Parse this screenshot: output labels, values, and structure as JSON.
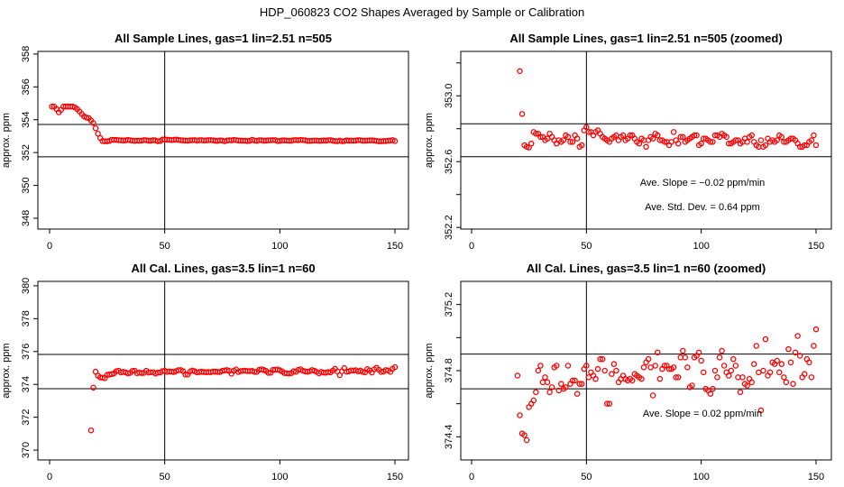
{
  "title": "HDP_060823  CO2 Shapes Averaged by Sample or Calibration",
  "chart_data": [
    {
      "type": "scatter",
      "title": "All Sample Lines, gas=1 lin=2.51 n=505",
      "xlabel": "",
      "ylabel": "approx. ppm",
      "series_ref": "sample",
      "xlim": [
        0,
        150
      ],
      "ylim": [
        347.34,
        358.16
      ],
      "xticks": [
        "0",
        "50",
        "100",
        "150"
      ],
      "yticks": [
        "348",
        "350",
        "352",
        "354",
        "356",
        "358"
      ],
      "hlines": [
        353.71,
        351.74
      ],
      "vlines": [
        50
      ],
      "annotations": []
    },
    {
      "type": "scatter",
      "title": "All Sample Lines, gas=1 lin=2.51 n=505 (zoomed)",
      "xlabel": "",
      "ylabel": "approx. ppm",
      "series_ref": "sample",
      "xlim": [
        0,
        150
      ],
      "ylim": [
        352.19,
        353.27
      ],
      "xticks": [
        "0",
        "50",
        "100",
        "150"
      ],
      "yticks": [
        "352.2",
        "352.4",
        "352.6",
        "352.8",
        "353.0",
        "353.2"
      ],
      "ytick_labels_shown": [
        "352.2",
        "",
        "352.6",
        "",
        "353.0",
        ""
      ],
      "hlines": [
        352.83,
        352.63
      ],
      "vlines": [
        50
      ],
      "annotations": [
        "Ave. Slope =  −0.02  ppm/min",
        "Ave. Std. Dev. =  0.64  ppm"
      ]
    },
    {
      "type": "scatter",
      "title": "All Cal. Lines, gas=3.5 lin=1 n=60",
      "xlabel": "",
      "ylabel": "approx. ppm",
      "series_ref": "cal",
      "xlim": [
        0,
        150
      ],
      "ylim": [
        369.4,
        380.27
      ],
      "xticks": [
        "0",
        "50",
        "100",
        "150"
      ],
      "yticks": [
        "370",
        "372",
        "374",
        "376",
        "378",
        "380"
      ],
      "hlines": [
        375.82,
        373.74
      ],
      "vlines": [
        50
      ],
      "annotations": []
    },
    {
      "type": "scatter",
      "title": "All Cal. Lines, gas=3.5 lin=1 n=60 (zoomed)",
      "xlabel": "",
      "ylabel": "approx. ppm",
      "series_ref": "cal",
      "xlim": [
        0,
        150
      ],
      "ylim": [
        374.26,
        375.34
      ],
      "xticks": [
        "0",
        "50",
        "100",
        "150"
      ],
      "yticks": [
        "374.4",
        "374.6",
        "374.8",
        "375.0",
        "375.2"
      ],
      "ytick_labels_shown": [
        "374.4",
        "",
        "374.8",
        "",
        "375.2"
      ],
      "hlines": [
        374.9,
        374.69
      ],
      "vlines": [
        50
      ],
      "annotations": [
        "Ave. Slope =  0.02  ppm/min"
      ]
    }
  ],
  "series": {
    "sample": {
      "color": "#ff0000",
      "x_start": 1,
      "values": [
        354.8,
        354.8,
        354.65,
        354.45,
        354.6,
        354.8,
        354.8,
        354.8,
        354.8,
        354.8,
        354.75,
        354.65,
        354.5,
        354.35,
        354.2,
        354.13,
        354.1,
        353.95,
        353.8,
        353.48,
        353.15,
        352.89,
        352.7,
        352.69,
        352.686,
        352.71,
        352.78,
        352.77,
        352.77,
        352.75,
        352.75,
        352.73,
        352.74,
        352.77,
        352.75,
        352.73,
        352.71,
        352.73,
        352.72,
        352.73,
        352.76,
        352.75,
        352.72,
        352.72,
        352.76,
        352.74,
        352.69,
        352.7,
        352.79,
        352.81,
        352.78,
        352.78,
        352.76,
        352.78,
        352.79,
        352.77,
        352.75,
        352.74,
        352.73,
        352.72,
        352.74,
        352.75,
        352.76,
        352.73,
        352.75,
        352.76,
        352.73,
        352.74,
        352.76,
        352.76,
        352.74,
        352.72,
        352.71,
        352.74,
        352.73,
        352.69,
        352.73,
        352.75,
        352.74,
        352.77,
        352.76,
        352.73,
        352.73,
        352.72,
        352.72,
        352.7,
        352.72,
        352.78,
        352.73,
        352.71,
        352.75,
        352.75,
        352.72,
        352.73,
        352.74,
        352.75,
        352.76,
        352.76,
        352.7,
        352.71,
        352.74,
        352.74,
        352.73,
        352.72,
        352.72,
        352.76,
        352.76,
        352.75,
        352.77,
        352.76,
        352.75,
        352.71,
        352.71,
        352.72,
        352.73,
        352.73,
        352.71,
        352.72,
        352.74,
        352.72,
        352.75,
        352.76,
        352.72,
        352.7,
        352.69,
        352.73,
        352.69,
        352.7,
        352.74,
        352.72,
        352.73,
        352.72,
        352.73,
        352.76,
        352.75,
        352.72,
        352.72,
        352.73,
        352.74,
        352.74,
        352.73,
        352.71,
        352.69,
        352.69,
        352.7,
        352.7,
        352.72,
        352.73,
        352.76,
        352.7
      ]
    },
    "cal": {
      "color": "#ff0000",
      "x_start": 18,
      "values": [
        371.2,
        373.8,
        374.77,
        374.53,
        374.42,
        374.41,
        374.38,
        374.58,
        374.6,
        374.62,
        374.67,
        374.8,
        374.83,
        374.73,
        374.76,
        374.73,
        374.67,
        374.7,
        374.82,
        374.83,
        374.68,
        374.72,
        374.69,
        374.7,
        374.83,
        374.72,
        374.74,
        374.74,
        374.66,
        374.72,
        374.72,
        374.81,
        374.83,
        374.76,
        374.79,
        374.77,
        374.75,
        374.81,
        374.87,
        374.87,
        374.8,
        374.6,
        374.6,
        374.78,
        374.84,
        374.8,
        374.73,
        374.75,
        374.77,
        374.75,
        374.74,
        374.75,
        374.74,
        374.78,
        374.77,
        374.76,
        374.75,
        374.82,
        374.85,
        374.87,
        374.82,
        374.65,
        374.83,
        374.91,
        374.75,
        374.81,
        374.83,
        374.83,
        374.81,
        374.81,
        374.82,
        374.76,
        374.76,
        374.88,
        374.92,
        374.88,
        374.82,
        374.7,
        374.71,
        374.88,
        374.89,
        374.91,
        374.86,
        374.79,
        374.69,
        374.68,
        374.66,
        374.69,
        374.8,
        374.76,
        374.88,
        374.92,
        374.83,
        374.79,
        374.77,
        374.8,
        374.87,
        374.83,
        374.76,
        374.67,
        374.76,
        374.72,
        374.71,
        374.75,
        374.73,
        374.84,
        374.95,
        374.79,
        374.56,
        374.8,
        374.99,
        374.77,
        374.79,
        374.85,
        374.84,
        374.86,
        374.79,
        374.84,
        374.76,
        374.73,
        374.93,
        374.85,
        374.72,
        374.91,
        375.01,
        374.89,
        374.76,
        374.78,
        374.87,
        374.85,
        374.76,
        374.95,
        375.05
      ]
    }
  }
}
